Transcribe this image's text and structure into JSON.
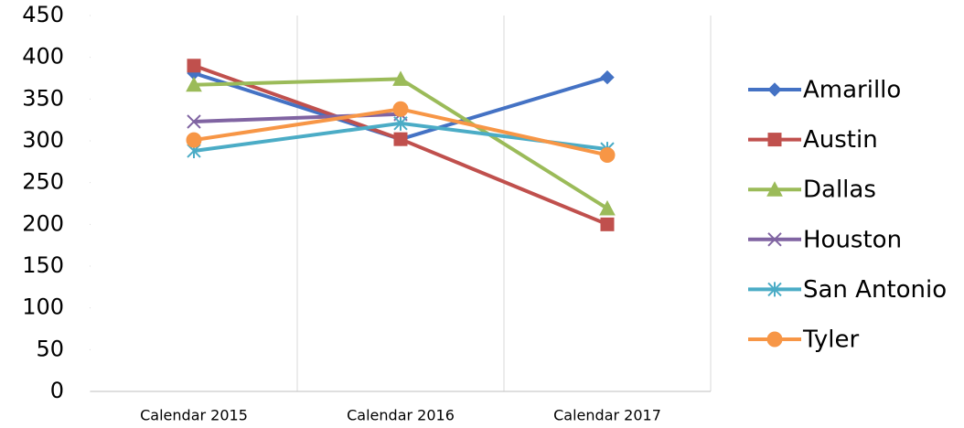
{
  "chart_data": {
    "type": "line",
    "categories": [
      "Calendar 2015",
      "Calendar 2016",
      "Calendar 2017"
    ],
    "series": [
      {
        "name": "Amarillo",
        "color": "#4472c4",
        "marker": "diamond",
        "values": [
          381,
          302,
          376
        ]
      },
      {
        "name": "Austin",
        "color": "#c0504d",
        "marker": "square",
        "values": [
          390,
          302,
          200
        ]
      },
      {
        "name": "Dallas",
        "color": "#9bbb59",
        "marker": "triangle",
        "values": [
          367,
          374,
          219
        ]
      },
      {
        "name": "Houston",
        "color": "#8064a2",
        "marker": "x",
        "values": [
          323,
          332,
          null
        ]
      },
      {
        "name": "San Antonio",
        "color": "#4bacc6",
        "marker": "star",
        "values": [
          288,
          321,
          290
        ]
      },
      {
        "name": "Tyler",
        "color": "#f79646",
        "marker": "circle",
        "values": [
          301,
          338,
          283
        ]
      }
    ],
    "ylim": [
      0,
      450
    ],
    "yticks": [
      0,
      50,
      100,
      150,
      200,
      250,
      300,
      350,
      400,
      450
    ],
    "legend": "right"
  }
}
